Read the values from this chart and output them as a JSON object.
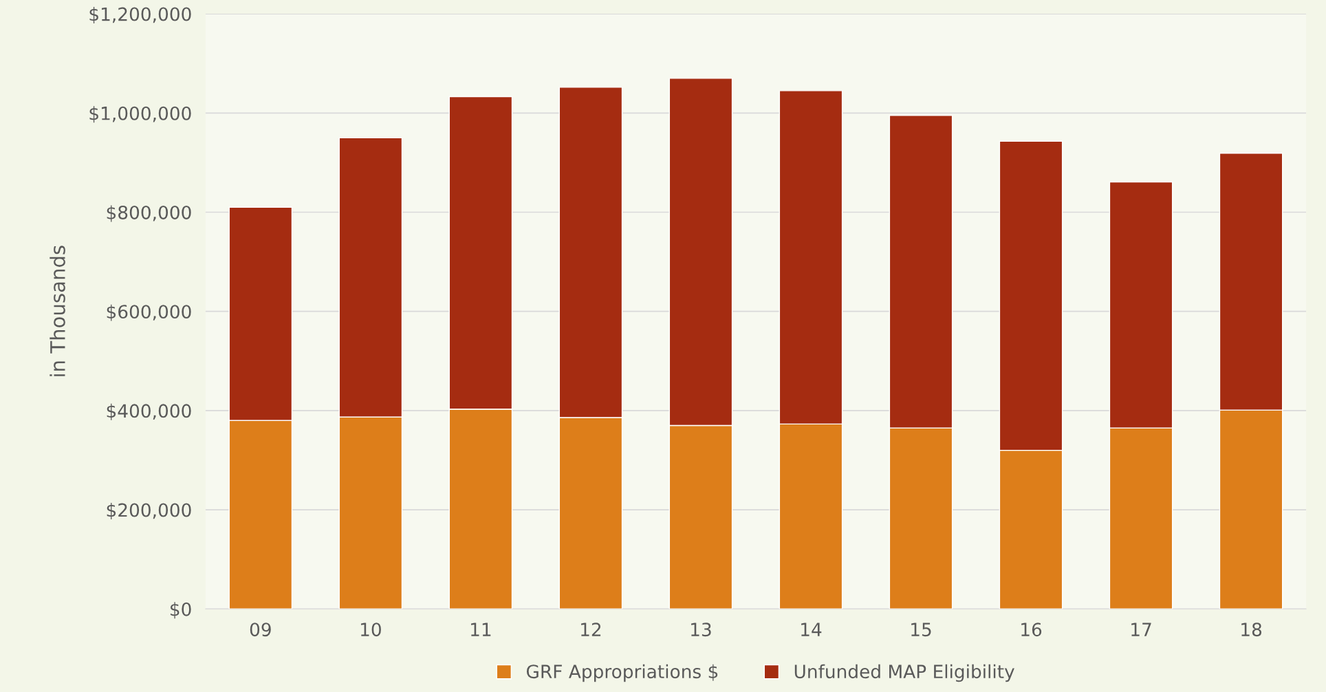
{
  "chart_data": {
    "type": "bar",
    "stacked": true,
    "ylabel": "in Thousands",
    "categories": [
      "09",
      "10",
      "11",
      "12",
      "13",
      "14",
      "15",
      "16",
      "17",
      "18"
    ],
    "series": [
      {
        "name": "GRF Appropriations $",
        "color": "#dd7e1a",
        "values": [
          380000,
          387000,
          403000,
          386000,
          370000,
          373000,
          365000,
          320000,
          365000,
          401000
        ]
      },
      {
        "name": "Unfunded MAP Eligibility",
        "color": "#a52c11",
        "values": [
          430000,
          563000,
          630000,
          666000,
          700000,
          672000,
          630000,
          623000,
          496000,
          518000
        ]
      }
    ],
    "ylim": [
      0,
      1200000
    ],
    "yticks": [
      {
        "value": 0,
        "label": "$0"
      },
      {
        "value": 200000,
        "label": "$200,000"
      },
      {
        "value": 400000,
        "label": "$400,000"
      },
      {
        "value": 600000,
        "label": "$600,000"
      },
      {
        "value": 800000,
        "label": "$800,000"
      },
      {
        "value": 1000000,
        "label": "$1,000,000"
      },
      {
        "value": 1200000,
        "label": "$1,200,000"
      }
    ],
    "grid": "y",
    "legend": "bottom"
  }
}
